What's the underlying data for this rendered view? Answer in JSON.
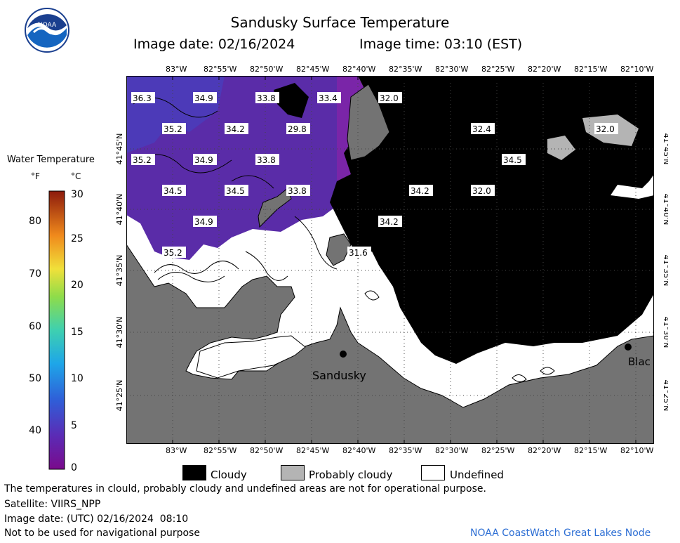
{
  "header": {
    "title": "Sandusky Surface Temperature",
    "image_date": "Image date: 02/16/2024",
    "image_time": "Image time: 03:10 (EST)"
  },
  "logo": {
    "text": "NOAA"
  },
  "legend": {
    "title": "Water Temperature",
    "unit_f": "°F",
    "unit_c": "°C",
    "f_ticks": [
      "80",
      "70",
      "60",
      "50",
      "40"
    ],
    "c_ticks": [
      "30",
      "25",
      "20",
      "15",
      "10",
      "5",
      "0"
    ]
  },
  "map": {
    "lon_labels": [
      "83°W",
      "82°55'W",
      "82°50'W",
      "82°45'W",
      "82°40'W",
      "82°35'W",
      "82°30'W",
      "82°25'W",
      "82°20'W",
      "82°15'W",
      "82°10'W"
    ],
    "lat_labels": [
      "41°45'N",
      "41°40'N",
      "41°35'N",
      "41°30'N",
      "41°25'N"
    ],
    "temperature_labels": [
      "36.3",
      "34.9",
      "33.8",
      "33.4",
      "32.0",
      "35.2",
      "34.2",
      "29.8",
      "32.4",
      "32.0",
      "35.2",
      "34.9",
      "33.8",
      "34.5",
      "34.5",
      "34.5",
      "33.8",
      "34.2",
      "32.0",
      "34.9",
      "34.2",
      "35.2",
      "31.6"
    ],
    "places": {
      "sandusky": "Sandusky",
      "edge_city": "Blac"
    },
    "colors": {
      "land": "#737373",
      "cloud": "#000000",
      "probably_cloudy": "#b4b4b4",
      "water_purple": "#5a2ca8"
    }
  },
  "bottom_legend": {
    "cloudy": "Cloudy",
    "probably_cloudy": "Probably cloudy",
    "undefined": "Undefined"
  },
  "footer": {
    "disclaimer": "The temperatures in clould, probably cloudy and undefined areas are not for operational purpose.",
    "satellite": "Satellite: VIIRS_NPP",
    "utc": "Image date: (UTC) 02/16/2024  08:10",
    "nav_note": "Not to be used for navigational purpose",
    "credit": "NOAA CoastWatch Great Lakes Node"
  }
}
